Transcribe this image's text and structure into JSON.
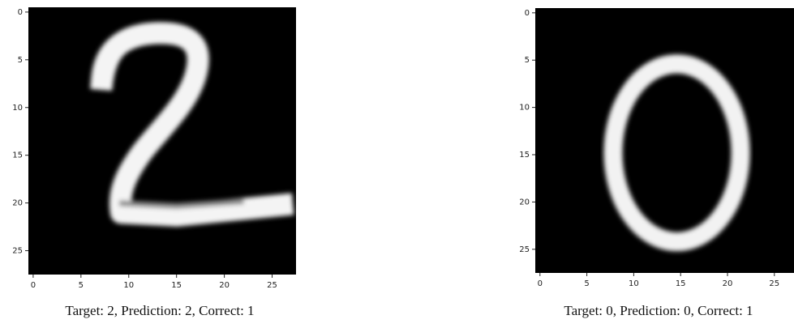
{
  "chart_data": [
    {
      "type": "image",
      "xlim": [
        -0.5,
        27.5
      ],
      "ylim": [
        27.5,
        -0.5
      ],
      "xticks": [
        0,
        5,
        10,
        15,
        20,
        25
      ],
      "yticks": [
        0,
        5,
        10,
        15,
        20,
        25
      ],
      "caption": "Target: 2, Prediction: 2, Correct: 1"
    },
    {
      "type": "image",
      "xlim": [
        -0.5,
        27.5
      ],
      "ylim": [
        27.5,
        -0.5
      ],
      "xticks": [
        0,
        5,
        10,
        15,
        20,
        25
      ],
      "yticks": [
        0,
        5,
        10,
        15,
        20,
        25
      ],
      "caption": "Target: 0, Prediction: 0, Correct: 1"
    }
  ]
}
